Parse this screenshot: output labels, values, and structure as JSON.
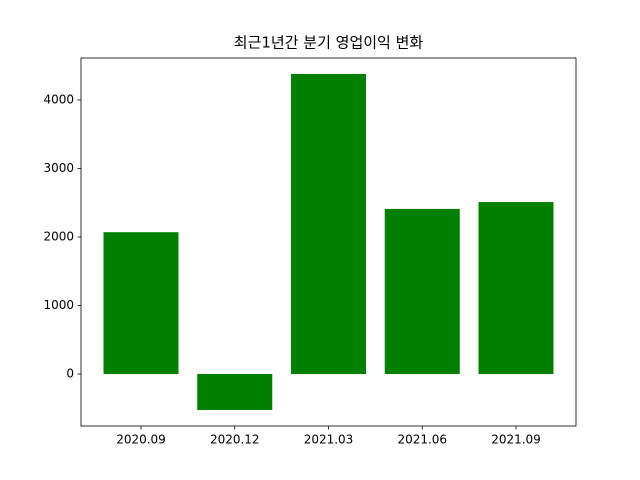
{
  "chart_data": {
    "type": "bar",
    "title": "최근1년간 분기 영업이익 변화",
    "categories": [
      "2020.09",
      "2020.12",
      "2021.03",
      "2021.06",
      "2021.09"
    ],
    "values": [
      2070,
      -525,
      4380,
      2410,
      2510
    ],
    "color": "#008000",
    "ylim": [
      -759,
      4613
    ],
    "yticks": [
      0,
      1000,
      2000,
      3000,
      4000
    ],
    "grid": false
  }
}
